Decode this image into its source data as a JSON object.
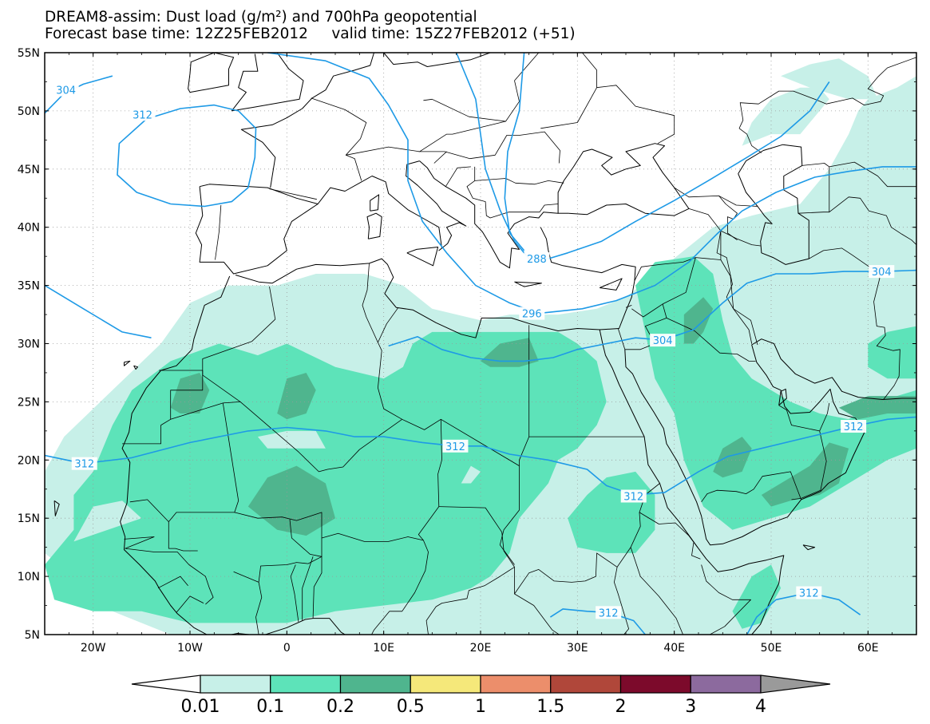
{
  "title": {
    "line1": "DREAM8-assim: Dust load (g/m²) and 700hPa geopotential",
    "line2": "Forecast base time: 12Z25FEB2012     valid time: 15Z27FEB2012 (+51)"
  },
  "map": {
    "extent": {
      "lon_min": -25,
      "lon_max": 65,
      "lat_min": 5,
      "lat_max": 55
    },
    "lat_ticks": [
      {
        "value": 55,
        "label": "55N"
      },
      {
        "value": 50,
        "label": "50N"
      },
      {
        "value": 45,
        "label": "45N"
      },
      {
        "value": 40,
        "label": "40N"
      },
      {
        "value": 35,
        "label": "35N"
      },
      {
        "value": 30,
        "label": "30N"
      },
      {
        "value": 25,
        "label": "25N"
      },
      {
        "value": 20,
        "label": "20N"
      },
      {
        "value": 15,
        "label": "15N"
      },
      {
        "value": 10,
        "label": "10N"
      },
      {
        "value": 5,
        "label": "5N"
      }
    ],
    "lon_ticks": [
      {
        "value": -20,
        "label": "20W"
      },
      {
        "value": -10,
        "label": "10W"
      },
      {
        "value": 0,
        "label": "0"
      },
      {
        "value": 10,
        "label": "10E"
      },
      {
        "value": 20,
        "label": "20E"
      },
      {
        "value": 30,
        "label": "30E"
      },
      {
        "value": 40,
        "label": "40E"
      },
      {
        "value": 50,
        "label": "50E"
      },
      {
        "value": 60,
        "label": "60E"
      }
    ],
    "grid_lines": true,
    "contour_labels": [
      {
        "text": "304",
        "lon": -22.8,
        "lat": 51.8
      },
      {
        "text": "312",
        "lon": -14.9,
        "lat": 49.7
      },
      {
        "text": "288",
        "lon": 25.8,
        "lat": 37.3
      },
      {
        "text": "296",
        "lon": 25.3,
        "lat": 32.6
      },
      {
        "text": "304",
        "lon": 38.8,
        "lat": 30.3
      },
      {
        "text": "304",
        "lon": 61.4,
        "lat": 36.2
      },
      {
        "text": "312",
        "lon": -20.9,
        "lat": 19.7
      },
      {
        "text": "312",
        "lon": 17.4,
        "lat": 21.2
      },
      {
        "text": "312",
        "lon": 35.8,
        "lat": 16.9
      },
      {
        "text": "312",
        "lon": 58.5,
        "lat": 22.9
      },
      {
        "text": "312",
        "lon": 33.2,
        "lat": 6.9
      },
      {
        "text": "312",
        "lon": 53.9,
        "lat": 8.6
      }
    ]
  },
  "colorbar": {
    "levels": [
      "0.01",
      "0.1",
      "0.2",
      "0.5",
      "1",
      "1.5",
      "2",
      "3",
      "4"
    ],
    "colors": [
      "#ffffff",
      "#c7f0e8",
      "#5de3b9",
      "#4fb58e",
      "#f5e87a",
      "#ec8e6b",
      "#b0473a",
      "#7c0a2b",
      "#8c6a9e",
      "#9a9a9a"
    ]
  },
  "dust_colors": {
    "light": "#c7f0e8",
    "medium": "#5de3b9",
    "dark": "#4fb58e"
  },
  "contour_color": "#1e9ae6"
}
